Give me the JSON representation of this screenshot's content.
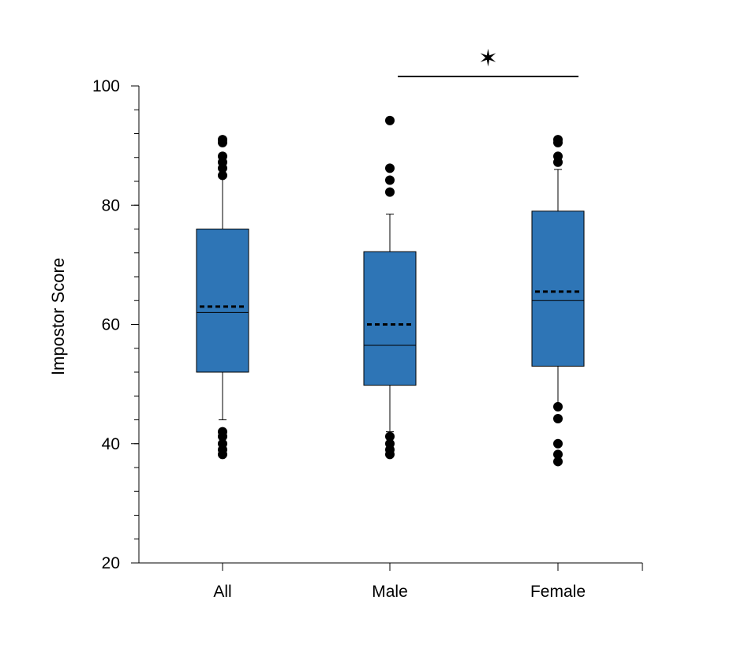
{
  "chart_data": {
    "type": "boxplot",
    "title": "",
    "xlabel": "",
    "ylabel": "Impostor Score",
    "ylim": [
      20,
      100
    ],
    "yticks": [
      20,
      40,
      60,
      80,
      100
    ],
    "y_minor_step": 4,
    "grid": false,
    "legend": "none",
    "box_color": "#2e75b6",
    "line_color": "#000000",
    "categories": [
      "All",
      "Male",
      "Female"
    ],
    "series": [
      {
        "category": "All",
        "whisker_low": 44,
        "q1": 52,
        "median": 62,
        "mean": 63,
        "q3": 76,
        "whisker_high": 85,
        "outliers": [
          38.2,
          39,
          40,
          41.2,
          42,
          85,
          86.2,
          87.2,
          88.2,
          90.5,
          91
        ]
      },
      {
        "category": "Male",
        "whisker_low": 42,
        "q1": 49.8,
        "median": 56.5,
        "mean": 60,
        "q3": 72.2,
        "whisker_high": 78.5,
        "outliers": [
          38.2,
          39,
          40,
          41.2,
          82.2,
          84.2,
          86.2,
          94.2
        ]
      },
      {
        "category": "Female",
        "whisker_low": 46,
        "q1": 53,
        "median": 64,
        "mean": 65.5,
        "q3": 79,
        "whisker_high": 86,
        "outliers": [
          37,
          38.2,
          40,
          44.2,
          46.2,
          87.2,
          88.2,
          90.5,
          91
        ]
      }
    ],
    "significance": [
      {
        "from": "Male",
        "to": "Female",
        "label": "✶"
      }
    ]
  }
}
